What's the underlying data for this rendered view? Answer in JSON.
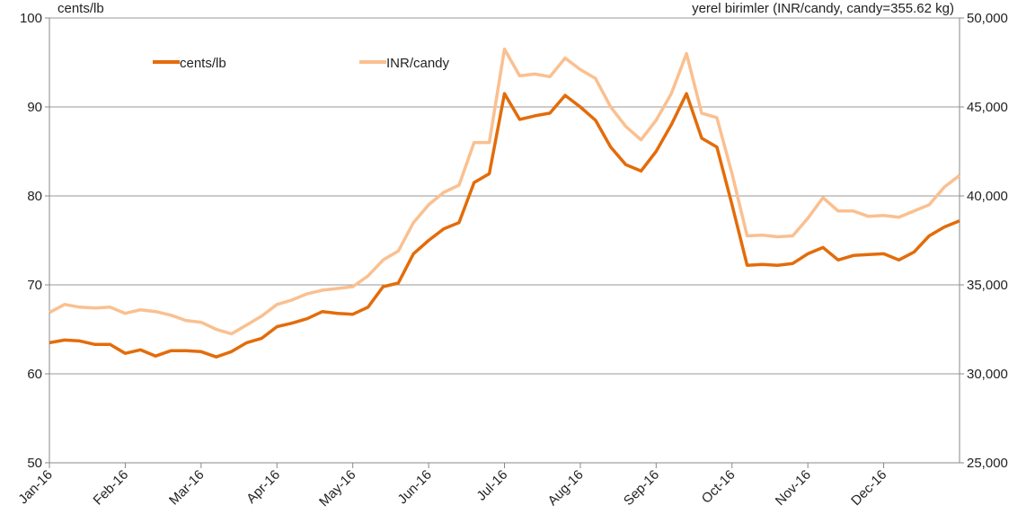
{
  "chart_data": {
    "type": "line",
    "y_label": "cents/lb",
    "y2_label": "yerel birimler (INR/candy, candy=355.62 kg)",
    "categories": [
      "Jan-16",
      null,
      null,
      null,
      null,
      "Feb-16",
      null,
      null,
      null,
      null,
      "Mar-16",
      null,
      null,
      null,
      null,
      "Apr-16",
      null,
      null,
      null,
      null,
      "May-16",
      null,
      null,
      null,
      null,
      "Jun-16",
      null,
      null,
      null,
      null,
      "Jul-16",
      null,
      null,
      null,
      null,
      "Aug-16",
      null,
      null,
      null,
      null,
      "Sep-16",
      null,
      null,
      null,
      null,
      "Oct-16",
      null,
      null,
      null,
      null,
      "Nov-16",
      null,
      null,
      null,
      null,
      "Dec-16",
      null,
      null,
      null,
      null,
      null
    ],
    "series": [
      {
        "name": "cents/lb",
        "color": "#e36c0a",
        "values": [
          63.5,
          63.8,
          63.7,
          63.3,
          63.3,
          62.3,
          62.7,
          62.0,
          62.6,
          62.6,
          62.5,
          61.9,
          62.5,
          63.5,
          64.0,
          65.3,
          65.7,
          66.2,
          67.0,
          66.8,
          66.7,
          67.5,
          69.8,
          70.2,
          73.5,
          75.0,
          76.3,
          77.0,
          81.5,
          82.5,
          91.5,
          88.6,
          89.0,
          89.3,
          91.3,
          90.0,
          88.5,
          85.5,
          83.5,
          82.8,
          85.0,
          88.0,
          91.5,
          86.5,
          85.5,
          79.0,
          72.2,
          72.3,
          72.2,
          72.4,
          73.5,
          74.2,
          72.8,
          73.3,
          73.4,
          73.5,
          72.8,
          73.7,
          75.5,
          76.5,
          77.2
        ]
      },
      {
        "name": "INR/candy",
        "color": "#fac090",
        "axis": "y2",
        "values": [
          33450,
          33900,
          33750,
          33700,
          33750,
          33400,
          33600,
          33500,
          33300,
          33000,
          32900,
          32500,
          32250,
          32750,
          33250,
          33900,
          34150,
          34500,
          34700,
          34800,
          34900,
          35500,
          36400,
          36900,
          38500,
          39500,
          40200,
          40600,
          43000,
          43000,
          48250,
          46750,
          46850,
          46700,
          47750,
          47100,
          46600,
          45000,
          43900,
          43150,
          44250,
          45750,
          48000,
          44650,
          44400,
          41250,
          37750,
          37800,
          37700,
          37750,
          38750,
          39900,
          39150,
          39150,
          38850,
          38900,
          38800,
          39150,
          39500,
          40500,
          41150
        ]
      }
    ],
    "ylim": [
      50,
      100
    ],
    "yticks": [
      50,
      60,
      70,
      80,
      90,
      100
    ],
    "y2lim": [
      25000,
      50000
    ],
    "y2ticks": [
      {
        "value": 25000,
        "label": "25,000"
      },
      {
        "value": 30000,
        "label": "30,000"
      },
      {
        "value": 35000,
        "label": "35,000"
      },
      {
        "value": 40000,
        "label": "40,000"
      },
      {
        "value": 45000,
        "label": "45,000"
      },
      {
        "value": 50000,
        "label": "50,000"
      }
    ],
    "grid": true,
    "legend": "top"
  }
}
